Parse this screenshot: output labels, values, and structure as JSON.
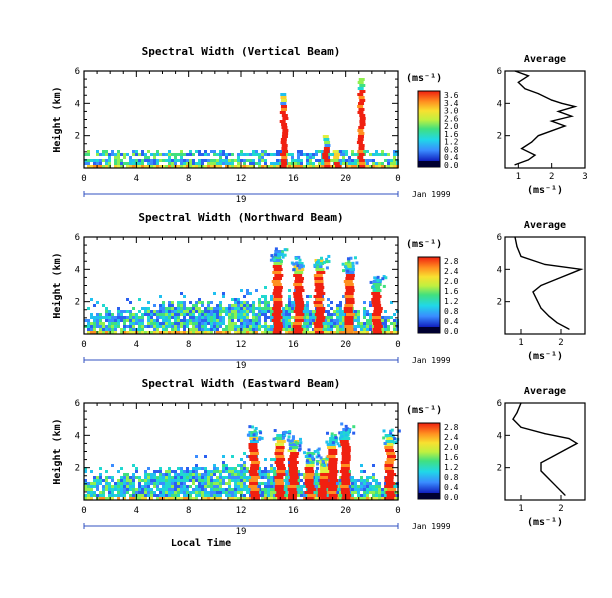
{
  "chart_data": [
    {
      "type": "heatmap",
      "title": "Spectral Width (Vertical Beam)",
      "ylabel": "Height (km)",
      "y_ticks": [
        "6",
        "4",
        "2"
      ],
      "x_ticks": [
        "0",
        "4",
        "8",
        "12",
        "16",
        "20",
        "0"
      ],
      "date_labels": {
        "day": "19",
        "month_year": "Jan 1999"
      },
      "ylim": [
        0,
        6
      ],
      "colorbar": {
        "label": "(ms⁻¹)",
        "ticks": [
          "3.6",
          "3.4",
          "3.0",
          "2.6",
          "2.0",
          "1.6",
          "1.2",
          "0.8",
          "0.4",
          "0.0"
        ]
      },
      "plumes": [
        {
          "x": 15.3,
          "top": 4.8
        },
        {
          "x": 18.5,
          "top": 2.2
        },
        {
          "x": 19.3,
          "top": 1.2
        },
        {
          "x": 21.2,
          "top": 5.7
        }
      ],
      "average": {
        "title": "Average",
        "xlabel": "(ms⁻¹)",
        "x_ticks": [
          "1",
          "2",
          "3"
        ],
        "y_ticks": [
          "6",
          "4",
          "2"
        ],
        "xlim": [
          0.6,
          3
        ],
        "ylim": [
          0,
          6
        ],
        "profile": [
          [
            0.9,
            0.2
          ],
          [
            1.3,
            0.5
          ],
          [
            1.5,
            0.8
          ],
          [
            1.1,
            1.2
          ],
          [
            1.4,
            1.6
          ],
          [
            1.6,
            2.0
          ],
          [
            2.0,
            2.3
          ],
          [
            2.4,
            2.6
          ],
          [
            2.0,
            2.9
          ],
          [
            2.6,
            3.2
          ],
          [
            2.2,
            3.5
          ],
          [
            2.7,
            3.8
          ],
          [
            2.3,
            4.0
          ],
          [
            2.0,
            4.2
          ],
          [
            1.6,
            4.6
          ],
          [
            1.2,
            4.9
          ],
          [
            1.0,
            5.3
          ],
          [
            1.3,
            5.7
          ],
          [
            0.9,
            6.0
          ]
        ]
      }
    },
    {
      "type": "heatmap",
      "title": "Spectral Width (Northward Beam)",
      "ylabel": "Height (km)",
      "y_ticks": [
        "6",
        "4",
        "2"
      ],
      "x_ticks": [
        "0",
        "4",
        "8",
        "12",
        "16",
        "20",
        "0"
      ],
      "date_labels": {
        "day": "19",
        "month_year": "Jan 1999"
      },
      "ylim": [
        0,
        6
      ],
      "colorbar": {
        "label": "(ms⁻¹)",
        "ticks": [
          "2.8",
          "2.4",
          "2.0",
          "1.6",
          "1.2",
          "0.8",
          "0.4",
          "0.0"
        ]
      },
      "plumes": [
        {
          "x": 14.8,
          "top": 5.2
        },
        {
          "x": 16.4,
          "top": 4.6
        },
        {
          "x": 18.0,
          "top": 4.8
        },
        {
          "x": 20.3,
          "top": 4.6
        },
        {
          "x": 22.4,
          "top": 3.4
        }
      ],
      "average": {
        "title": "Average",
        "xlabel": "(ms⁻¹)",
        "x_ticks": [
          "1",
          "2"
        ],
        "y_ticks": [
          "6",
          "4",
          "2"
        ],
        "xlim": [
          0.6,
          2.6
        ],
        "ylim": [
          0,
          6
        ],
        "profile": [
          [
            2.2,
            0.3
          ],
          [
            1.9,
            0.7
          ],
          [
            1.7,
            1.1
          ],
          [
            1.5,
            1.6
          ],
          [
            1.4,
            2.1
          ],
          [
            1.3,
            2.6
          ],
          [
            1.5,
            3.0
          ],
          [
            1.9,
            3.4
          ],
          [
            2.3,
            3.8
          ],
          [
            2.5,
            4.0
          ],
          [
            1.6,
            4.3
          ],
          [
            1.0,
            4.8
          ],
          [
            0.9,
            5.4
          ],
          [
            0.85,
            6.0
          ]
        ]
      }
    },
    {
      "type": "heatmap",
      "title": "Spectral Width (Eastward Beam)",
      "ylabel": "Height (km)",
      "xlabel": "Local Time",
      "y_ticks": [
        "6",
        "4",
        "2"
      ],
      "x_ticks": [
        "0",
        "4",
        "8",
        "12",
        "16",
        "20",
        "0"
      ],
      "date_labels": {
        "day": "19",
        "month_year": "Jan 1999"
      },
      "ylim": [
        0,
        6
      ],
      "colorbar": {
        "label": "(ms⁻¹)",
        "ticks": [
          "2.8",
          "2.4",
          "2.0",
          "1.6",
          "1.2",
          "0.8",
          "0.4",
          "0.0"
        ]
      },
      "plumes": [
        {
          "x": 13.0,
          "top": 4.4
        },
        {
          "x": 15.0,
          "top": 4.2
        },
        {
          "x": 16.0,
          "top": 3.8
        },
        {
          "x": 17.3,
          "top": 3.0
        },
        {
          "x": 18.3,
          "top": 2.6
        },
        {
          "x": 19.0,
          "top": 4.0
        },
        {
          "x": 20.0,
          "top": 4.6
        },
        {
          "x": 23.4,
          "top": 4.2
        }
      ],
      "average": {
        "title": "Average",
        "xlabel": "(ms⁻¹)",
        "x_ticks": [
          "1",
          "2"
        ],
        "y_ticks": [
          "6",
          "4",
          "2"
        ],
        "xlim": [
          0.6,
          2.6
        ],
        "ylim": [
          0,
          6
        ],
        "profile": [
          [
            2.1,
            0.3
          ],
          [
            1.9,
            0.8
          ],
          [
            1.7,
            1.3
          ],
          [
            1.5,
            1.8
          ],
          [
            1.5,
            2.3
          ],
          [
            1.8,
            2.7
          ],
          [
            2.1,
            3.1
          ],
          [
            2.4,
            3.5
          ],
          [
            2.2,
            3.8
          ],
          [
            1.6,
            4.1
          ],
          [
            1.0,
            4.5
          ],
          [
            0.8,
            5.0
          ],
          [
            0.9,
            5.4
          ],
          [
            1.0,
            6.0
          ]
        ]
      }
    }
  ]
}
